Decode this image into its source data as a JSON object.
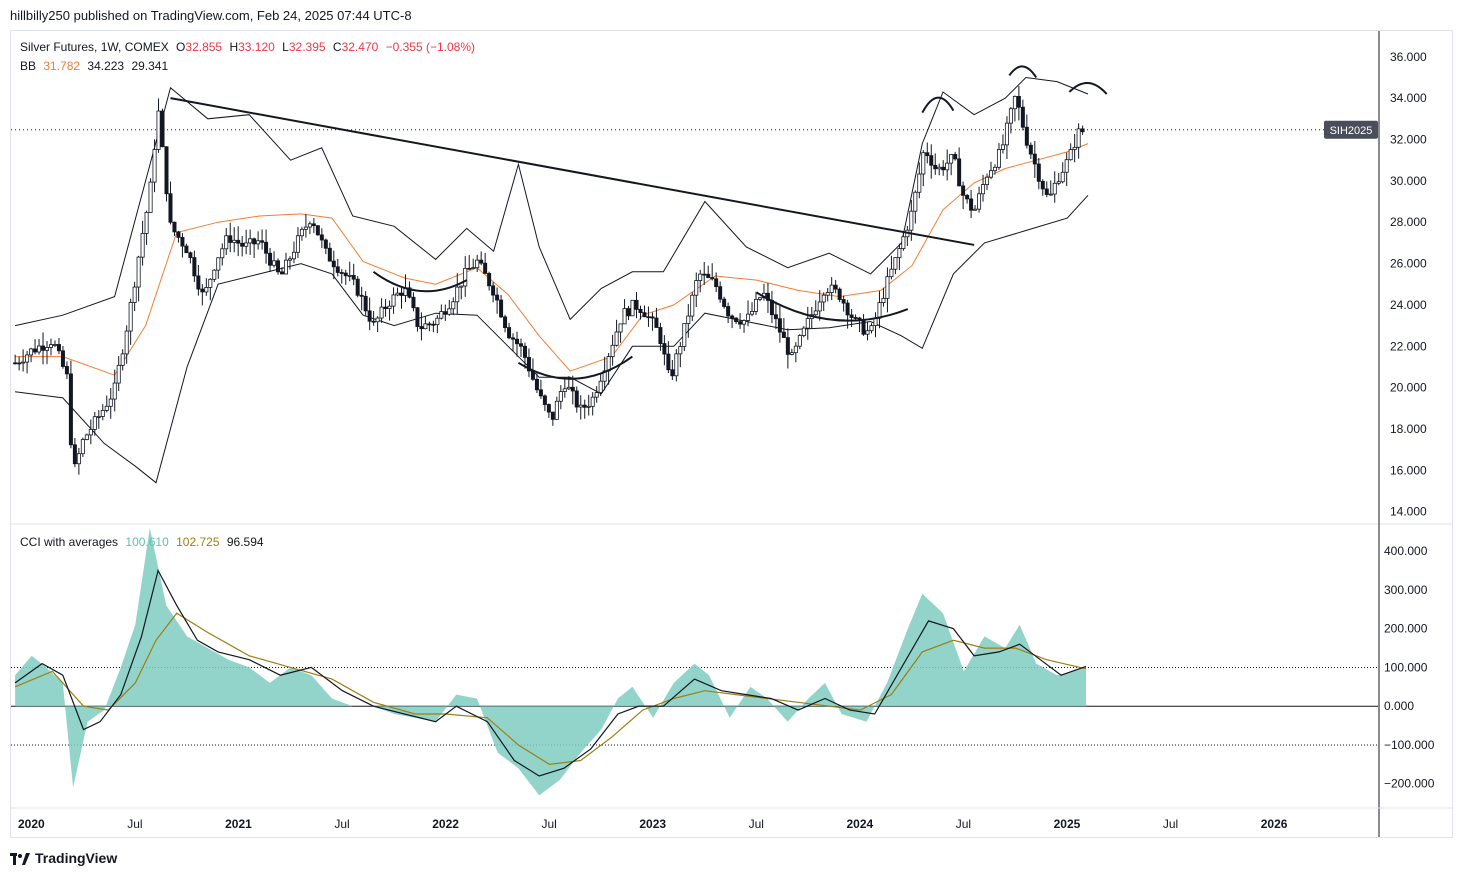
{
  "header": {
    "publisher_line": "hillbilly250 published on TradingView.com, Feb 24, 2025 07:44 UTC-8"
  },
  "legend": {
    "symbol": "Silver Futures, 1W, COMEX",
    "open_label": "O",
    "open": "32.855",
    "high_label": "H",
    "high": "33.120",
    "low_label": "L",
    "low": "32.395",
    "close_label": "C",
    "close": "32.470",
    "change": "−0.355 (−1.08%)",
    "bb_label": "BB",
    "bb_basis": "31.782",
    "bb_upper": "34.223",
    "bb_lower": "29.341",
    "cci_label": "CCI with averages",
    "cci_value": "100.610",
    "cci_avg1": "102.725",
    "cci_avg2": "96.594"
  },
  "price_tag": "SIH2025",
  "brand": {
    "name": "TradingView"
  },
  "colors": {
    "up": "#131722",
    "down": "#131722",
    "bb_band": "#131722",
    "bb_basis": "#f57c32",
    "cci_fill": "#7fcdc1",
    "cci_ma_fast": "#131722",
    "cci_ma_slow": "#9c7f14",
    "trendline": "#131722"
  },
  "chart_data": [
    {
      "type": "candlestick",
      "title": "",
      "xlabel": "",
      "ylabel": "",
      "x_ticks": [
        "2020",
        "Jul",
        "2021",
        "Jul",
        "2022",
        "Jul",
        "2023",
        "Jul",
        "2024",
        "Jul",
        "2025",
        "Jul",
        "2026"
      ],
      "y_ticks": [
        "14.000",
        "16.000",
        "18.000",
        "20.000",
        "22.000",
        "24.000",
        "26.000",
        "28.000",
        "30.000",
        "32.000",
        "34.000",
        "36.000"
      ],
      "ylim": [
        13.5,
        37.2
      ],
      "xlim": [
        2019.95,
        2026.55
      ],
      "last_price": 32.47,
      "price_series": [
        [
          2019.97,
          21.2
        ],
        [
          2020.05,
          21.8
        ],
        [
          2020.15,
          22.3
        ],
        [
          2020.22,
          20.5
        ],
        [
          2020.25,
          15.8
        ],
        [
          2020.3,
          17.5
        ],
        [
          2020.38,
          18.7
        ],
        [
          2020.45,
          19.9
        ],
        [
          2020.52,
          23.5
        ],
        [
          2020.58,
          27.2
        ],
        [
          2020.62,
          29.3
        ],
        [
          2020.66,
          33.5
        ],
        [
          2020.72,
          27.8
        ],
        [
          2020.8,
          26.7
        ],
        [
          2020.88,
          24.3
        ],
        [
          2020.94,
          26.2
        ],
        [
          2021.0,
          27.3
        ],
        [
          2021.08,
          26.8
        ],
        [
          2021.15,
          27.1
        ],
        [
          2021.25,
          25.3
        ],
        [
          2021.33,
          27.0
        ],
        [
          2021.4,
          28.3
        ],
        [
          2021.47,
          26.5
        ],
        [
          2021.55,
          25.6
        ],
        [
          2021.62,
          24.8
        ],
        [
          2021.7,
          23.0
        ],
        [
          2021.77,
          24.1
        ],
        [
          2021.85,
          24.8
        ],
        [
          2021.92,
          22.9
        ],
        [
          2022.0,
          23.2
        ],
        [
          2022.08,
          24.3
        ],
        [
          2022.15,
          25.6
        ],
        [
          2022.2,
          26.1
        ],
        [
          2022.28,
          24.7
        ],
        [
          2022.35,
          22.7
        ],
        [
          2022.42,
          21.8
        ],
        [
          2022.5,
          19.6
        ],
        [
          2022.56,
          18.4
        ],
        [
          2022.62,
          20.3
        ],
        [
          2022.7,
          18.9
        ],
        [
          2022.76,
          19.5
        ],
        [
          2022.83,
          21.5
        ],
        [
          2022.9,
          23.5
        ],
        [
          2022.96,
          24.0
        ],
        [
          2023.0,
          23.8
        ],
        [
          2023.08,
          22.6
        ],
        [
          2023.13,
          20.3
        ],
        [
          2023.2,
          22.8
        ],
        [
          2023.27,
          25.5
        ],
        [
          2023.35,
          25.0
        ],
        [
          2023.42,
          23.5
        ],
        [
          2023.5,
          23.2
        ],
        [
          2023.58,
          24.6
        ],
        [
          2023.66,
          22.8
        ],
        [
          2023.72,
          21.4
        ],
        [
          2023.8,
          23.2
        ],
        [
          2023.88,
          24.9
        ],
        [
          2023.95,
          24.5
        ],
        [
          2024.03,
          23.1
        ],
        [
          2024.1,
          22.6
        ],
        [
          2024.17,
          24.8
        ],
        [
          2024.23,
          26.4
        ],
        [
          2024.3,
          28.5
        ],
        [
          2024.36,
          31.6
        ],
        [
          2024.42,
          30.5
        ],
        [
          2024.5,
          31.1
        ],
        [
          2024.55,
          29.2
        ],
        [
          2024.6,
          28.5
        ],
        [
          2024.66,
          30.3
        ],
        [
          2024.73,
          31.4
        ],
        [
          2024.8,
          34.1
        ],
        [
          2024.85,
          32.1
        ],
        [
          2024.9,
          30.6
        ],
        [
          2024.96,
          29.0
        ],
        [
          2025.0,
          30.1
        ],
        [
          2025.06,
          31.1
        ],
        [
          2025.1,
          32.3
        ],
        [
          2025.14,
          32.47
        ]
      ],
      "bb_upper_series": [
        [
          2019.97,
          23.0
        ],
        [
          2020.2,
          23.5
        ],
        [
          2020.45,
          24.4
        ],
        [
          2020.6,
          30.0
        ],
        [
          2020.72,
          34.5
        ],
        [
          2020.9,
          33.0
        ],
        [
          2021.1,
          33.2
        ],
        [
          2021.3,
          31.0
        ],
        [
          2021.45,
          31.6
        ],
        [
          2021.6,
          28.3
        ],
        [
          2021.8,
          27.8
        ],
        [
          2022.0,
          26.2
        ],
        [
          2022.15,
          27.7
        ],
        [
          2022.28,
          26.6
        ],
        [
          2022.4,
          30.8
        ],
        [
          2022.5,
          26.8
        ],
        [
          2022.65,
          23.3
        ],
        [
          2022.8,
          24.8
        ],
        [
          2022.95,
          25.6
        ],
        [
          2023.1,
          25.6
        ],
        [
          2023.3,
          29.0
        ],
        [
          2023.5,
          26.8
        ],
        [
          2023.7,
          25.8
        ],
        [
          2023.9,
          26.5
        ],
        [
          2024.1,
          25.5
        ],
        [
          2024.25,
          27.0
        ],
        [
          2024.35,
          31.8
        ],
        [
          2024.45,
          34.3
        ],
        [
          2024.6,
          33.2
        ],
        [
          2024.75,
          34.0
        ],
        [
          2024.85,
          35.0
        ],
        [
          2025.0,
          34.8
        ],
        [
          2025.15,
          34.2
        ]
      ],
      "bb_basis_series": [
        [
          2019.97,
          21.5
        ],
        [
          2020.2,
          21.5
        ],
        [
          2020.45,
          20.6
        ],
        [
          2020.6,
          23.0
        ],
        [
          2020.75,
          27.5
        ],
        [
          2020.95,
          28.0
        ],
        [
          2021.15,
          28.3
        ],
        [
          2021.35,
          28.4
        ],
        [
          2021.5,
          28.2
        ],
        [
          2021.65,
          26.1
        ],
        [
          2021.85,
          25.3
        ],
        [
          2022.0,
          25.0
        ],
        [
          2022.2,
          25.8
        ],
        [
          2022.35,
          24.5
        ],
        [
          2022.5,
          22.5
        ],
        [
          2022.65,
          20.8
        ],
        [
          2022.85,
          21.5
        ],
        [
          2023.0,
          23.5
        ],
        [
          2023.15,
          24.0
        ],
        [
          2023.35,
          25.4
        ],
        [
          2023.55,
          25.2
        ],
        [
          2023.75,
          24.7
        ],
        [
          2023.95,
          24.4
        ],
        [
          2024.15,
          24.7
        ],
        [
          2024.3,
          25.9
        ],
        [
          2024.45,
          28.6
        ],
        [
          2024.6,
          29.9
        ],
        [
          2024.75,
          30.6
        ],
        [
          2024.9,
          31.0
        ],
        [
          2025.05,
          31.4
        ],
        [
          2025.15,
          31.8
        ]
      ],
      "bb_lower_series": [
        [
          2019.97,
          19.8
        ],
        [
          2020.2,
          19.5
        ],
        [
          2020.4,
          17.3
        ],
        [
          2020.55,
          16.2
        ],
        [
          2020.65,
          15.4
        ],
        [
          2020.8,
          21.0
        ],
        [
          2020.95,
          25.0
        ],
        [
          2021.15,
          25.5
        ],
        [
          2021.35,
          26.0
        ],
        [
          2021.5,
          25.5
        ],
        [
          2021.65,
          23.5
        ],
        [
          2021.8,
          23.0
        ],
        [
          2022.0,
          23.6
        ],
        [
          2022.2,
          23.5
        ],
        [
          2022.35,
          22.0
        ],
        [
          2022.5,
          20.5
        ],
        [
          2022.65,
          20.5
        ],
        [
          2022.8,
          19.7
        ],
        [
          2022.95,
          22.0
        ],
        [
          2023.15,
          22.0
        ],
        [
          2023.3,
          23.6
        ],
        [
          2023.5,
          23.2
        ],
        [
          2023.7,
          22.8
        ],
        [
          2023.9,
          22.9
        ],
        [
          2024.1,
          23.2
        ],
        [
          2024.25,
          22.5
        ],
        [
          2024.35,
          21.9
        ],
        [
          2024.5,
          25.5
        ],
        [
          2024.65,
          27.0
        ],
        [
          2024.85,
          27.6
        ],
        [
          2025.05,
          28.2
        ],
        [
          2025.15,
          29.3
        ]
      ],
      "trendline": [
        [
          2020.72,
          34.0
        ],
        [
          2024.6,
          26.9
        ]
      ]
    },
    {
      "type": "area",
      "title": "",
      "y_ticks": [
        "−200.000",
        "−100.000",
        "0.000",
        "100.000",
        "200.000",
        "300.000",
        "400.000"
      ],
      "ylim": [
        -260,
        470
      ],
      "reference_lines": [
        -100,
        0,
        100
      ],
      "cci_series": [
        [
          2019.97,
          80
        ],
        [
          2020.05,
          130
        ],
        [
          2020.12,
          100
        ],
        [
          2020.2,
          60
        ],
        [
          2020.25,
          -210
        ],
        [
          2020.32,
          -40
        ],
        [
          2020.4,
          -10
        ],
        [
          2020.48,
          100
        ],
        [
          2020.55,
          210
        ],
        [
          2020.62,
          460
        ],
        [
          2020.7,
          260
        ],
        [
          2020.8,
          180
        ],
        [
          2020.9,
          150
        ],
        [
          2021.0,
          120
        ],
        [
          2021.1,
          100
        ],
        [
          2021.2,
          60
        ],
        [
          2021.3,
          100
        ],
        [
          2021.4,
          80
        ],
        [
          2021.5,
          20
        ],
        [
          2021.6,
          0
        ],
        [
          2021.7,
          0
        ],
        [
          2021.8,
          -20
        ],
        [
          2021.9,
          -30
        ],
        [
          2022.0,
          -40
        ],
        [
          2022.1,
          30
        ],
        [
          2022.2,
          20
        ],
        [
          2022.3,
          -120
        ],
        [
          2022.4,
          -160
        ],
        [
          2022.5,
          -230
        ],
        [
          2022.6,
          -190
        ],
        [
          2022.7,
          -120
        ],
        [
          2022.8,
          -60
        ],
        [
          2022.88,
          20
        ],
        [
          2022.95,
          50
        ],
        [
          2023.05,
          -30
        ],
        [
          2023.15,
          60
        ],
        [
          2023.25,
          110
        ],
        [
          2023.32,
          80
        ],
        [
          2023.42,
          -30
        ],
        [
          2023.52,
          50
        ],
        [
          2023.6,
          20
        ],
        [
          2023.7,
          -40
        ],
        [
          2023.8,
          20
        ],
        [
          2023.88,
          60
        ],
        [
          2023.96,
          -20
        ],
        [
          2024.08,
          -40
        ],
        [
          2024.18,
          60
        ],
        [
          2024.28,
          200
        ],
        [
          2024.35,
          290
        ],
        [
          2024.45,
          240
        ],
        [
          2024.55,
          90
        ],
        [
          2024.65,
          180
        ],
        [
          2024.75,
          150
        ],
        [
          2024.82,
          210
        ],
        [
          2024.9,
          110
        ],
        [
          2025.0,
          80
        ],
        [
          2025.08,
          90
        ],
        [
          2025.14,
          100.61
        ]
      ],
      "ma_fast_series": [
        [
          2019.97,
          60
        ],
        [
          2020.1,
          110
        ],
        [
          2020.2,
          80
        ],
        [
          2020.3,
          -60
        ],
        [
          2020.38,
          -40
        ],
        [
          2020.48,
          30
        ],
        [
          2020.58,
          180
        ],
        [
          2020.66,
          350
        ],
        [
          2020.75,
          260
        ],
        [
          2020.85,
          170
        ],
        [
          2020.95,
          140
        ],
        [
          2021.1,
          120
        ],
        [
          2021.25,
          80
        ],
        [
          2021.4,
          100
        ],
        [
          2021.55,
          40
        ],
        [
          2021.7,
          0
        ],
        [
          2021.85,
          -20
        ],
        [
          2022.0,
          -40
        ],
        [
          2022.1,
          0
        ],
        [
          2022.25,
          -40
        ],
        [
          2022.38,
          -140
        ],
        [
          2022.5,
          -180
        ],
        [
          2022.62,
          -160
        ],
        [
          2022.75,
          -110
        ],
        [
          2022.88,
          -20
        ],
        [
          2022.98,
          0
        ],
        [
          2023.1,
          0
        ],
        [
          2023.25,
          70
        ],
        [
          2023.38,
          40
        ],
        [
          2023.5,
          30
        ],
        [
          2023.62,
          20
        ],
        [
          2023.75,
          -10
        ],
        [
          2023.88,
          20
        ],
        [
          2024.0,
          -10
        ],
        [
          2024.12,
          -20
        ],
        [
          2024.25,
          100
        ],
        [
          2024.38,
          220
        ],
        [
          2024.5,
          200
        ],
        [
          2024.6,
          130
        ],
        [
          2024.72,
          140
        ],
        [
          2024.82,
          160
        ],
        [
          2024.92,
          120
        ],
        [
          2025.02,
          80
        ],
        [
          2025.14,
          102.725
        ]
      ],
      "ma_slow_series": [
        [
          2019.97,
          50
        ],
        [
          2020.15,
          90
        ],
        [
          2020.3,
          0
        ],
        [
          2020.42,
          -10
        ],
        [
          2020.55,
          60
        ],
        [
          2020.65,
          170
        ],
        [
          2020.75,
          240
        ],
        [
          2020.9,
          190
        ],
        [
          2021.1,
          130
        ],
        [
          2021.3,
          100
        ],
        [
          2021.5,
          70
        ],
        [
          2021.7,
          10
        ],
        [
          2021.9,
          -20
        ],
        [
          2022.05,
          -20
        ],
        [
          2022.25,
          -30
        ],
        [
          2022.4,
          -100
        ],
        [
          2022.55,
          -150
        ],
        [
          2022.7,
          -140
        ],
        [
          2022.85,
          -80
        ],
        [
          2023.0,
          -10
        ],
        [
          2023.15,
          20
        ],
        [
          2023.3,
          40
        ],
        [
          2023.45,
          30
        ],
        [
          2023.6,
          20
        ],
        [
          2023.75,
          10
        ],
        [
          2023.9,
          0
        ],
        [
          2024.05,
          -10
        ],
        [
          2024.2,
          30
        ],
        [
          2024.35,
          140
        ],
        [
          2024.5,
          170
        ],
        [
          2024.65,
          150
        ],
        [
          2024.8,
          150
        ],
        [
          2024.95,
          120
        ],
        [
          2025.14,
          96.594
        ]
      ]
    }
  ]
}
